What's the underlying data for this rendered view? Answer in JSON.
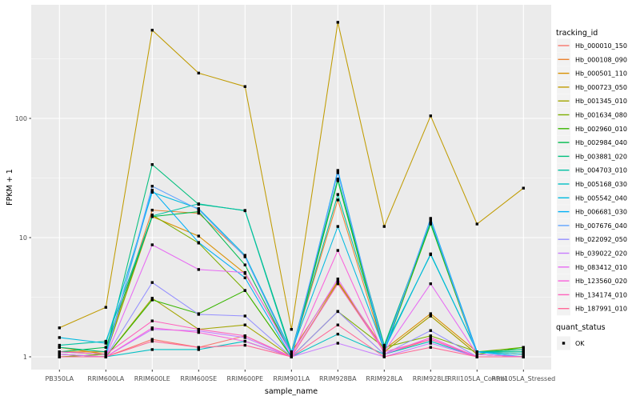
{
  "chart_data": {
    "type": "line",
    "title": "",
    "xlabel": "sample_name",
    "ylabel": "FPKM + 1",
    "y_scale": "log10",
    "y_ticks": [
      "1",
      "10",
      "100"
    ],
    "grid": true,
    "legend_position": "right",
    "categories": [
      "PB350LA",
      "RRIM600LA",
      "RRIM600LE",
      "RRIM600SE",
      "RRIM600PE",
      "RRIM901LA",
      "RRIM928BA",
      "RRIM928LA",
      "RRIM928LE",
      "RRII105LA_Control",
      "RRII105LA_Stressed"
    ],
    "legend": {
      "title": "tracking_id"
    },
    "quant_legend": {
      "title": "quant_status",
      "items": [
        "OK"
      ]
    },
    "point_color": "#000000",
    "theme": {
      "panel_bg": "#EBEBEB",
      "grid_color": "#FFFFFF",
      "tick_text": "#4D4D4D",
      "legend_key_bg": "#F2F2F2"
    },
    "series": [
      {
        "name": "Hb_000010_150",
        "color": "#F8766D",
        "values": [
          1.05,
          1.0,
          1.4,
          1.2,
          1.5,
          1.0,
          2.4,
          1.05,
          1.4,
          1.0,
          1.0
        ]
      },
      {
        "name": "Hb_000108_090",
        "color": "#EA8331",
        "values": [
          1.1,
          1.1,
          17.0,
          16.0,
          7.0,
          1.05,
          20.7,
          1.1,
          2.2,
          1.05,
          1.0
        ]
      },
      {
        "name": "Hb_000501_110",
        "color": "#D89000",
        "values": [
          1.2,
          1.05,
          15.0,
          10.3,
          5.0,
          1.1,
          4.3,
          1.15,
          2.3,
          1.1,
          1.05
        ]
      },
      {
        "name": "Hb_000723_050",
        "color": "#C09B00",
        "values": [
          1.75,
          2.6,
          550,
          240,
          185,
          1.7,
          640,
          12.4,
          105,
          13.0,
          26.0
        ]
      },
      {
        "name": "Hb_001345_010",
        "color": "#A3A500",
        "values": [
          1.0,
          1.0,
          3.1,
          1.7,
          1.85,
          1.0,
          4.2,
          1.1,
          2.2,
          1.05,
          1.0
        ]
      },
      {
        "name": "Hb_001634_080",
        "color": "#7CAE00",
        "values": [
          1.0,
          1.05,
          15.5,
          9.0,
          3.6,
          1.0,
          2.4,
          1.2,
          1.5,
          1.1,
          1.2
        ]
      },
      {
        "name": "Hb_002960_010",
        "color": "#39B600",
        "values": [
          1.05,
          1.0,
          3.0,
          2.3,
          3.6,
          1.0,
          30.0,
          1.1,
          13.0,
          1.05,
          1.2
        ]
      },
      {
        "name": "Hb_002984_040",
        "color": "#00BB4E",
        "values": [
          1.1,
          1.2,
          15.0,
          16.5,
          5.9,
          1.05,
          30.5,
          1.2,
          13.2,
          1.1,
          1.1
        ]
      },
      {
        "name": "Hb_003881_020",
        "color": "#00BF7D",
        "values": [
          1.2,
          1.1,
          41.0,
          19.0,
          16.9,
          1.1,
          31.0,
          1.25,
          13.5,
          1.1,
          1.15
        ]
      },
      {
        "name": "Hb_004703_010",
        "color": "#00C1A3",
        "values": [
          1.25,
          1.35,
          15.2,
          19.2,
          16.8,
          1.05,
          23.0,
          1.2,
          7.2,
          1.1,
          1.1
        ]
      },
      {
        "name": "Hb_005168_030",
        "color": "#00BFC4",
        "values": [
          1.0,
          1.0,
          1.15,
          1.15,
          1.35,
          1.0,
          1.55,
          1.05,
          1.35,
          1.0,
          1.0
        ]
      },
      {
        "name": "Hb_005542_040",
        "color": "#00BAE0",
        "values": [
          1.45,
          1.3,
          24.0,
          17.5,
          7.1,
          1.1,
          12.4,
          1.15,
          7.3,
          1.1,
          1.05
        ]
      },
      {
        "name": "Hb_006681_030",
        "color": "#00B0F6",
        "values": [
          1.1,
          1.05,
          25.0,
          9.1,
          4.6,
          1.0,
          36.6,
          1.1,
          14.5,
          1.1,
          1.0
        ]
      },
      {
        "name": "Hb_007676_040",
        "color": "#61A4FF",
        "values": [
          1.05,
          1.0,
          27.0,
          17.2,
          6.9,
          1.05,
          35.0,
          1.15,
          14.2,
          1.05,
          1.0
        ]
      },
      {
        "name": "Hb_022092_050",
        "color": "#9590FF",
        "values": [
          1.0,
          1.0,
          4.2,
          2.27,
          2.2,
          1.0,
          2.4,
          1.05,
          1.66,
          1.0,
          1.0
        ]
      },
      {
        "name": "Hb_039022_020",
        "color": "#C77CFF",
        "values": [
          1.0,
          1.0,
          1.7,
          1.65,
          1.45,
          1.0,
          1.3,
          1.0,
          1.3,
          1.0,
          1.0
        ]
      },
      {
        "name": "Hb_083412_010",
        "color": "#E76BF3",
        "values": [
          1.05,
          1.0,
          8.7,
          5.4,
          5.1,
          1.05,
          4.5,
          1.1,
          4.1,
          1.05,
          1.0
        ]
      },
      {
        "name": "Hb_123560_020",
        "color": "#FA62DB",
        "values": [
          1.0,
          1.0,
          1.75,
          1.6,
          1.35,
          1.0,
          7.8,
          1.05,
          1.45,
          1.0,
          1.0
        ]
      },
      {
        "name": "Hb_134174_010",
        "color": "#FF62BC",
        "values": [
          1.1,
          1.05,
          2.0,
          1.7,
          1.5,
          1.0,
          4.1,
          1.1,
          1.4,
          1.0,
          1.0
        ]
      },
      {
        "name": "Hb_187991_010",
        "color": "#FF6A98",
        "values": [
          1.0,
          1.0,
          1.35,
          1.2,
          1.25,
          1.0,
          1.85,
          1.0,
          1.2,
          1.0,
          1.0
        ]
      }
    ]
  }
}
